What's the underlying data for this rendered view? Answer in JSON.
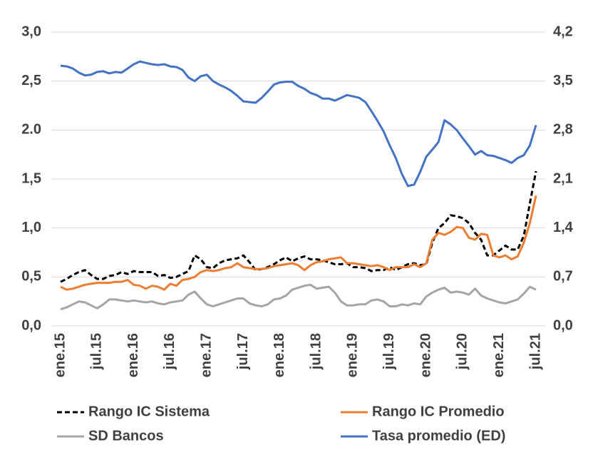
{
  "chart_data": {
    "type": "line",
    "categories": [
      "ene.15",
      null,
      null,
      null,
      null,
      null,
      "jul.15",
      null,
      null,
      null,
      null,
      null,
      "ene.16",
      null,
      null,
      null,
      null,
      null,
      "jul.16",
      null,
      null,
      null,
      null,
      null,
      "ene.17",
      null,
      null,
      null,
      null,
      null,
      "jul.17",
      null,
      null,
      null,
      null,
      null,
      "ene.18",
      null,
      null,
      null,
      null,
      null,
      "jul.18",
      null,
      null,
      null,
      null,
      null,
      "ene.19",
      null,
      null,
      null,
      null,
      null,
      "jul.19",
      null,
      null,
      null,
      null,
      null,
      "ene.20",
      null,
      null,
      null,
      null,
      null,
      "jul.20",
      null,
      null,
      null,
      null,
      null,
      "ene.21",
      null,
      null,
      null,
      null,
      null,
      "jul.21"
    ],
    "series": [
      {
        "name": "Rango IC Sistema",
        "color": "#000000",
        "linestyle": "dashed",
        "values": [
          0.45,
          0.48,
          0.52,
          0.55,
          0.57,
          0.52,
          0.48,
          0.48,
          0.51,
          0.52,
          0.55,
          0.53,
          0.56,
          0.55,
          0.55,
          0.55,
          0.51,
          0.52,
          0.49,
          0.5,
          0.53,
          0.56,
          0.72,
          0.68,
          0.6,
          0.59,
          0.64,
          0.67,
          0.68,
          0.69,
          0.72,
          0.65,
          0.57,
          0.58,
          0.6,
          0.63,
          0.67,
          0.7,
          0.66,
          0.69,
          0.71,
          0.68,
          0.68,
          0.67,
          0.65,
          0.63,
          0.63,
          0.64,
          0.6,
          0.6,
          0.59,
          0.56,
          0.57,
          0.57,
          0.6,
          0.57,
          0.6,
          0.63,
          0.64,
          0.62,
          0.63,
          0.85,
          1.0,
          1.05,
          1.13,
          1.12,
          1.1,
          1.05,
          0.95,
          0.88,
          0.72,
          0.72,
          0.77,
          0.82,
          0.78,
          0.78,
          0.92,
          1.25,
          1.58
        ]
      },
      {
        "name": "Rango IC Promedio",
        "color": "#ED7D31",
        "linestyle": "solid",
        "values": [
          0.4,
          0.37,
          0.38,
          0.4,
          0.42,
          0.43,
          0.44,
          0.44,
          0.44,
          0.45,
          0.45,
          0.47,
          0.42,
          0.41,
          0.38,
          0.41,
          0.4,
          0.37,
          0.43,
          0.41,
          0.47,
          0.48,
          0.5,
          0.55,
          0.57,
          0.56,
          0.57,
          0.59,
          0.6,
          0.64,
          0.6,
          0.59,
          0.58,
          0.58,
          0.59,
          0.61,
          0.62,
          0.63,
          0.64,
          0.62,
          0.57,
          0.62,
          0.65,
          0.66,
          0.68,
          0.69,
          0.7,
          0.64,
          0.64,
          0.63,
          0.62,
          0.61,
          0.62,
          0.6,
          0.57,
          0.6,
          0.6,
          0.6,
          0.63,
          0.6,
          0.64,
          0.88,
          0.95,
          0.93,
          0.96,
          1.01,
          1.0,
          0.9,
          0.88,
          0.94,
          0.93,
          0.72,
          0.7,
          0.72,
          0.68,
          0.71,
          0.85,
          1.05,
          1.33
        ]
      },
      {
        "name": "SD Bancos",
        "color": "#A5A5A5",
        "linestyle": "solid",
        "values": [
          0.17,
          0.19,
          0.22,
          0.25,
          0.24,
          0.21,
          0.18,
          0.22,
          0.27,
          0.27,
          0.26,
          0.25,
          0.26,
          0.25,
          0.24,
          0.25,
          0.23,
          0.22,
          0.24,
          0.25,
          0.26,
          0.32,
          0.35,
          0.28,
          0.22,
          0.2,
          0.22,
          0.24,
          0.26,
          0.28,
          0.28,
          0.23,
          0.21,
          0.2,
          0.22,
          0.27,
          0.28,
          0.31,
          0.37,
          0.39,
          0.41,
          0.42,
          0.38,
          0.39,
          0.4,
          0.34,
          0.25,
          0.21,
          0.21,
          0.22,
          0.22,
          0.26,
          0.27,
          0.25,
          0.2,
          0.2,
          0.22,
          0.21,
          0.23,
          0.22,
          0.3,
          0.34,
          0.37,
          0.39,
          0.34,
          0.35,
          0.34,
          0.32,
          0.38,
          0.31,
          0.28,
          0.26,
          0.24,
          0.23,
          0.25,
          0.27,
          0.33,
          0.4,
          0.37
        ]
      },
      {
        "name": "Tasa promedio (ED)",
        "color": "#4472C4",
        "linestyle": "solid",
        "axis": "y2",
        "values": [
          3.72,
          3.71,
          3.68,
          3.62,
          3.58,
          3.59,
          3.63,
          3.64,
          3.61,
          3.63,
          3.62,
          3.68,
          3.74,
          3.78,
          3.76,
          3.74,
          3.73,
          3.74,
          3.71,
          3.7,
          3.66,
          3.55,
          3.5,
          3.57,
          3.59,
          3.5,
          3.45,
          3.41,
          3.36,
          3.29,
          3.21,
          3.2,
          3.19,
          3.26,
          3.35,
          3.45,
          3.48,
          3.49,
          3.49,
          3.43,
          3.39,
          3.33,
          3.3,
          3.25,
          3.25,
          3.22,
          3.26,
          3.3,
          3.28,
          3.26,
          3.2,
          3.07,
          2.93,
          2.78,
          2.58,
          2.4,
          2.17,
          2.0,
          2.02,
          2.2,
          2.42,
          2.52,
          2.63,
          2.94,
          2.88,
          2.8,
          2.68,
          2.57,
          2.45,
          2.5,
          2.44,
          2.43,
          2.4,
          2.37,
          2.33,
          2.4,
          2.44,
          2.58,
          2.87
        ]
      }
    ],
    "ylim": [
      0,
      3.0
    ],
    "yticks": [
      {
        "value": 0,
        "label": "0,0"
      },
      {
        "value": 0.5,
        "label": "0,5"
      },
      {
        "value": 1.0,
        "label": "1,0"
      },
      {
        "value": 1.5,
        "label": "1,5"
      },
      {
        "value": 2.0,
        "label": "2.0"
      },
      {
        "value": 2.5,
        "label": "2,5"
      },
      {
        "value": 3.0,
        "label": "3,0"
      }
    ],
    "y2lim": [
      0,
      4.2
    ],
    "y2ticks": [
      {
        "value": 0,
        "label": "0,0"
      },
      {
        "value": 0.7,
        "label": "0,7"
      },
      {
        "value": 1.4,
        "label": "1,4"
      },
      {
        "value": 2.1,
        "label": "2,1"
      },
      {
        "value": 2.8,
        "label": "2,8"
      },
      {
        "value": 3.5,
        "label": "3,5"
      },
      {
        "value": 4.2,
        "label": "4,2"
      }
    ],
    "grid": true
  }
}
